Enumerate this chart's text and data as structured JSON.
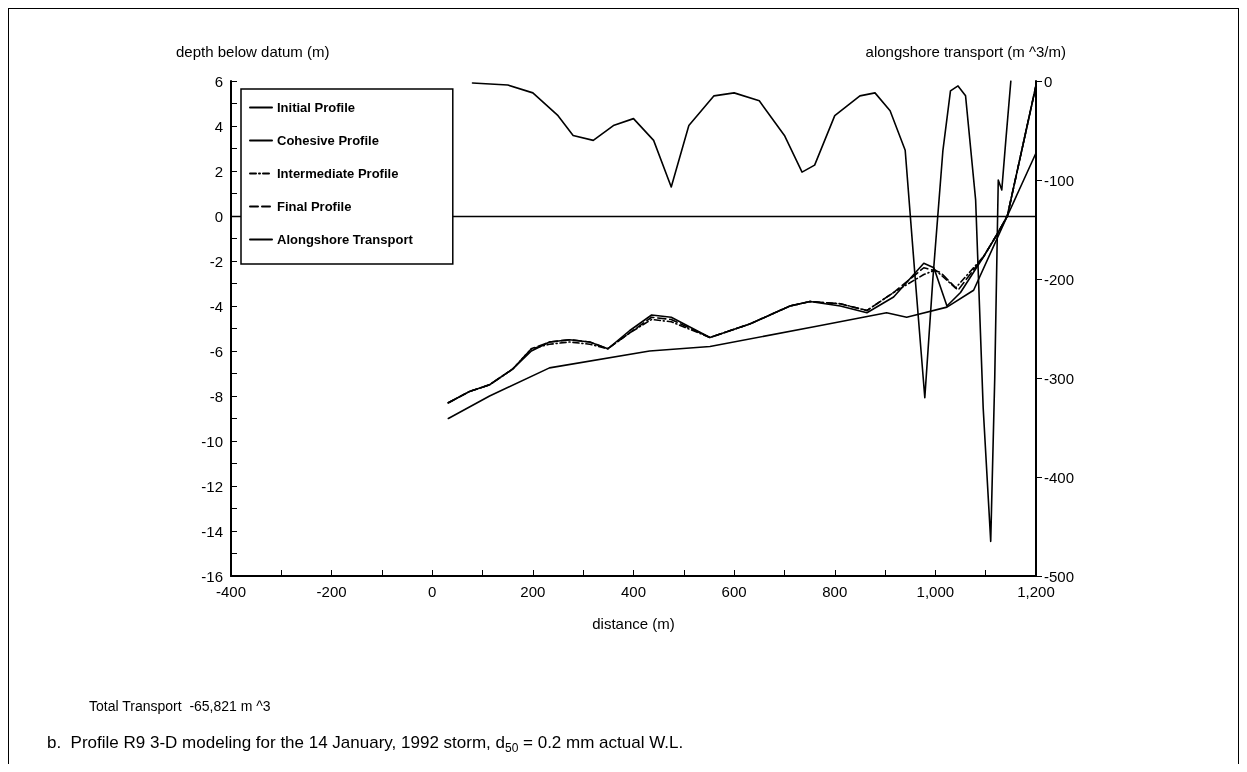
{
  "chart_data": {
    "type": "line",
    "ylabel": "depth below datum (m)",
    "y2label": "alongshore transport (m ^3/m)",
    "xlabel": "distance (m)",
    "annotations": [
      "Total Transport  -65,821 m ^3",
      "b.  Profile R9 3-D modeling for the 14 January, 1992 storm, d$_{50}$ = 0.2 mm actual W.L."
    ],
    "xlim": [
      -400,
      1200
    ],
    "xticks": [
      -400,
      {
        "value": -300,
        "label": null
      },
      -200,
      {
        "value": -100,
        "label": null
      },
      0,
      {
        "value": 100,
        "label": null
      },
      200,
      {
        "value": 300,
        "label": null
      },
      400,
      {
        "value": 500,
        "label": null
      },
      600,
      {
        "value": 700,
        "label": null
      },
      800,
      {
        "value": 900,
        "label": null
      },
      {
        "value": 1000,
        "label": "1,000"
      },
      {
        "value": 1100,
        "label": null
      },
      {
        "value": 1200,
        "label": "1,200"
      }
    ],
    "ylim": [
      -16,
      6
    ],
    "yticks": [
      -16,
      {
        "value": -15,
        "label": null
      },
      -14,
      {
        "value": -13,
        "label": null
      },
      -12,
      {
        "value": -11,
        "label": null
      },
      -10,
      {
        "value": -9,
        "label": null
      },
      -8,
      {
        "value": -7,
        "label": null
      },
      -6,
      {
        "value": -5,
        "label": null
      },
      -4,
      {
        "value": -3,
        "label": null
      },
      -2,
      {
        "value": -1,
        "label": null
      },
      0,
      {
        "value": 1,
        "label": null
      },
      2,
      {
        "value": 3,
        "label": null
      },
      4,
      {
        "value": 5,
        "label": null
      },
      6
    ],
    "y2lim": [
      -500,
      0
    ],
    "y2ticks": [
      -500,
      -400,
      -300,
      -200,
      -100,
      0
    ],
    "legend": "top left",
    "marker": "none",
    "grid": false,
    "ref_lines": [
      {
        "axis": "y",
        "value": 0,
        "color": "#000000"
      }
    ],
    "series": [
      {
        "name": "Initial Profile",
        "color": "#000000",
        "line_style": "solid",
        "x": [
          32,
          114,
          233,
          432,
          552,
          764,
          903,
          943,
          1023,
          1076,
          1143,
          1200
        ],
        "values": [
          -9.0,
          -8.0,
          -6.75,
          -6.0,
          -5.8,
          -4.9,
          -4.3,
          -4.5,
          -4.05,
          -3.3,
          0,
          2.8
        ]
      },
      {
        "name": "Cohesive Profile",
        "color": "#000000",
        "line_style": "solid",
        "x": [
          32,
          74,
          114,
          160,
          197,
          233,
          273,
          313,
          349,
          392,
          436,
          475,
          552,
          631,
          711,
          751,
          811,
          864,
          917,
          977,
          997,
          1023,
          1050,
          1096,
          1123,
          1143,
          1200
        ],
        "values": [
          -8.3,
          -7.8,
          -7.5,
          -6.8,
          -6.0,
          -5.6,
          -5.5,
          -5.6,
          -5.9,
          -5.1,
          -4.4,
          -4.5,
          -5.4,
          -4.8,
          -4.0,
          -3.8,
          -4.0,
          -4.3,
          -3.6,
          -2.1,
          -2.3,
          -4.0,
          -3.4,
          -1.8,
          -0.8,
          0,
          5.8
        ]
      },
      {
        "name": "Intermediate Profile",
        "color": "#000000",
        "line_style": "dashdot",
        "x": [
          32,
          74,
          114,
          160,
          197,
          233,
          273,
          313,
          349,
          392,
          436,
          475,
          552,
          631,
          711,
          751,
          811,
          864,
          917,
          977,
          1000,
          1040,
          1096,
          1123,
          1143,
          1200
        ],
        "values": [
          -8.3,
          -7.8,
          -7.5,
          -6.8,
          -5.9,
          -5.7,
          -5.6,
          -5.7,
          -5.9,
          -5.2,
          -4.6,
          -4.7,
          -5.4,
          -4.8,
          -4.0,
          -3.8,
          -3.9,
          -4.2,
          -3.4,
          -2.6,
          -2.4,
          -3.2,
          -1.8,
          -0.8,
          0,
          5.8
        ]
      },
      {
        "name": "Final Profile",
        "color": "#000000",
        "line_style": "dashed",
        "x": [
          32,
          74,
          114,
          160,
          197,
          233,
          273,
          313,
          349,
          392,
          436,
          475,
          552,
          631,
          711,
          751,
          811,
          864,
          917,
          977,
          1010,
          1045,
          1096,
          1123,
          1143,
          1200
        ],
        "values": [
          -8.3,
          -7.8,
          -7.5,
          -6.8,
          -5.9,
          -5.6,
          -5.5,
          -5.6,
          -5.9,
          -5.2,
          -4.5,
          -4.6,
          -5.4,
          -4.8,
          -4.0,
          -3.8,
          -3.9,
          -4.2,
          -3.4,
          -2.3,
          -2.5,
          -3.3,
          -1.8,
          -0.8,
          0,
          5.8
        ]
      },
      {
        "name": "Alongshore Transport",
        "color": "#000000",
        "line_style": "solid",
        "axis": "y2",
        "x": [
          80,
          150,
          200,
          250,
          280,
          320,
          360,
          400,
          440,
          475,
          510,
          560,
          600,
          650,
          700,
          735,
          760,
          800,
          850,
          880,
          910,
          940,
          960,
          979,
          995,
          1015,
          1030,
          1045,
          1060,
          1080,
          1095,
          1110,
          1118,
          1125,
          1132,
          1140,
          1150
        ],
        "values": [
          -2,
          -4,
          -12,
          -35,
          -55,
          -60,
          -45,
          -38,
          -60,
          -107,
          -45,
          -15,
          -12,
          -20,
          -55,
          -92,
          -85,
          -35,
          -15,
          -12,
          -30,
          -70,
          -200,
          -320,
          -200,
          -70,
          -10,
          -5,
          -15,
          -120,
          -330,
          -465,
          -300,
          -100,
          -110,
          -60,
          0
        ]
      }
    ]
  }
}
